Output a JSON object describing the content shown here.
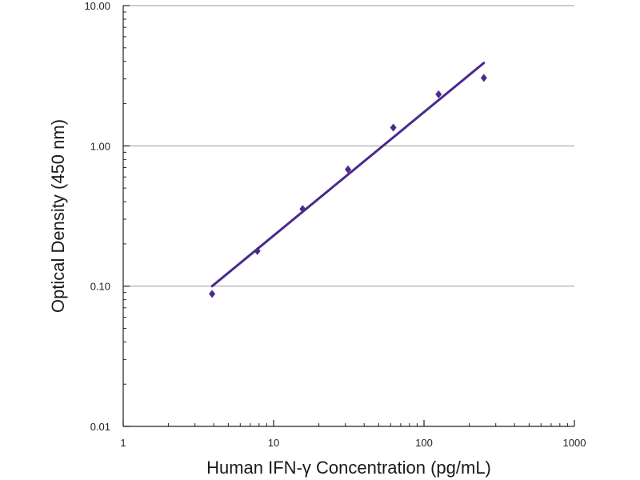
{
  "chart_data": {
    "type": "scatter",
    "xlabel": "Human IFN-γ Concentration (pg/mL)",
    "ylabel": "Optical Density (450 nm)",
    "x_scale": "log",
    "y_scale": "log",
    "xlim": [
      1,
      1000
    ],
    "ylim": [
      0.01,
      10
    ],
    "x_ticks": [
      1,
      10,
      100,
      1000
    ],
    "x_tick_labels": [
      "1",
      "10",
      "100",
      "1000"
    ],
    "y_ticks": [
      0.01,
      0.1,
      1,
      10
    ],
    "y_tick_labels": [
      "0.01",
      "0.10",
      "1.00",
      "10.00"
    ],
    "grid": "horizontal major lines",
    "series": [
      {
        "kind": "points",
        "marker": "diamond",
        "color": "#4b2a8c",
        "x": [
          3.9,
          7.8,
          15.6,
          31.25,
          62.5,
          125,
          250
        ],
        "y": [
          0.088,
          0.178,
          0.355,
          0.68,
          1.35,
          2.33,
          3.05
        ]
      },
      {
        "kind": "fit-line",
        "color": "#4b2a8c",
        "x": [
          3.9,
          250
        ],
        "y": [
          0.1,
          3.9
        ]
      }
    ]
  }
}
